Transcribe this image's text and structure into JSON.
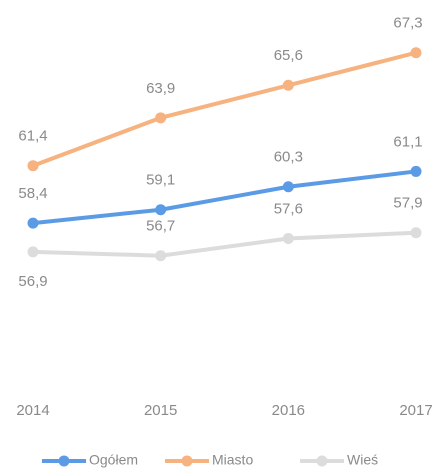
{
  "chart_data": {
    "type": "line",
    "categories": [
      "2014",
      "2015",
      "2016",
      "2017"
    ],
    "series": [
      {
        "name": "Ogółem",
        "color": "#5b9be6",
        "values": [
          58.4,
          59.1,
          60.3,
          61.1
        ],
        "value_labels": [
          "58,4",
          "59,1",
          "60,3",
          "61,1"
        ]
      },
      {
        "name": "Miasto",
        "color": "#f6b27f",
        "values": [
          61.4,
          63.9,
          65.6,
          67.3
        ],
        "value_labels": [
          "61,4",
          "63,9",
          "65,6",
          "67,3"
        ]
      },
      {
        "name": "Wieś",
        "color": "#dcdcdc",
        "values": [
          56.9,
          56.7,
          57.6,
          57.9
        ],
        "value_labels": [
          "56,9",
          "56,7",
          "57,6",
          "57,9"
        ]
      }
    ],
    "ylim": [
      50,
      70
    ],
    "grid": false,
    "legend": "bottom"
  }
}
